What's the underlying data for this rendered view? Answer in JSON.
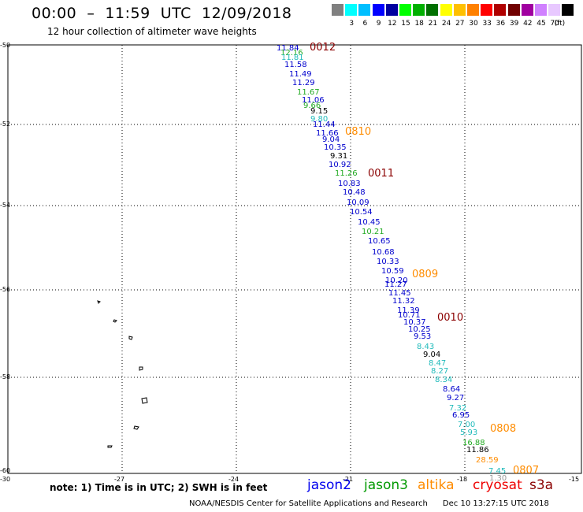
{
  "header": {
    "title": "00:00  –  11:59  UTC  12/09/2018",
    "subtitle": "12 hour collection of altimeter wave heights"
  },
  "scale": {
    "unit_label": "(ft)",
    "bins": [
      {
        "label": "",
        "color": "#808080"
      },
      {
        "label": "3",
        "color": "#00ffff"
      },
      {
        "label": "6",
        "color": "#00bfff"
      },
      {
        "label": "9",
        "color": "#0000ff"
      },
      {
        "label": "12",
        "color": "#0000a0"
      },
      {
        "label": "15",
        "color": "#00ff00"
      },
      {
        "label": "18",
        "color": "#00b000"
      },
      {
        "label": "21",
        "color": "#007000"
      },
      {
        "label": "24",
        "color": "#ffff00"
      },
      {
        "label": "27",
        "color": "#ffc000"
      },
      {
        "label": "30",
        "color": "#ff8000"
      },
      {
        "label": "33",
        "color": "#ff0000"
      },
      {
        "label": "36",
        "color": "#b00000"
      },
      {
        "label": "39",
        "color": "#700000"
      },
      {
        "label": "42",
        "color": "#a000a0"
      },
      {
        "label": "45",
        "color": "#d080ff"
      },
      {
        "label": "70",
        "color": "#e8c8ff"
      },
      {
        "label": "",
        "color": "#000000"
      }
    ]
  },
  "map": {
    "lat_ticks": [
      "-50",
      "-52",
      "-54",
      "-56",
      "-58",
      "-60"
    ],
    "lon_ticks": [
      "-30",
      "-27",
      "-24",
      "-21",
      "-18",
      "-15"
    ]
  },
  "track_passes": [
    {
      "label": "0012",
      "color": "#8b0000"
    },
    {
      "label": "0810",
      "color": "#ff8c00"
    },
    {
      "label": "0011",
      "color": "#8b0000"
    },
    {
      "label": "0809",
      "color": "#ff8c00"
    },
    {
      "label": "0010",
      "color": "#8b0000"
    },
    {
      "label": "0808",
      "color": "#ff8c00"
    },
    {
      "label": "0807",
      "color": "#ff8c00"
    }
  ],
  "observations": [
    {
      "value": "11.84",
      "color": "#0000cd"
    },
    {
      "value": "12.16",
      "color": "#22aa22"
    },
    {
      "value": "11.81",
      "color": "#22bbbb"
    },
    {
      "value": "11.58",
      "color": "#0000cd"
    },
    {
      "value": "11.49",
      "color": "#0000cd"
    },
    {
      "value": "11.29",
      "color": "#0000cd"
    },
    {
      "value": "11.67",
      "color": "#22aa22"
    },
    {
      "value": "11.06",
      "color": "#0000cd"
    },
    {
      "value": "9.66",
      "color": "#22aa22"
    },
    {
      "value": "9.15",
      "color": "#000000"
    },
    {
      "value": "9.80",
      "color": "#22bbbb"
    },
    {
      "value": "11.44",
      "color": "#0000cd"
    },
    {
      "value": "11.66",
      "color": "#0000cd"
    },
    {
      "value": "9.04",
      "color": "#0000cd"
    },
    {
      "value": "10.35",
      "color": "#0000cd"
    },
    {
      "value": "9.31",
      "color": "#000000"
    },
    {
      "value": "10.92",
      "color": "#0000cd"
    },
    {
      "value": "11.26",
      "color": "#22aa22"
    },
    {
      "value": "10.83",
      "color": "#0000cd"
    },
    {
      "value": "10.48",
      "color": "#0000cd"
    },
    {
      "value": "10.09",
      "color": "#0000cd"
    },
    {
      "value": "10.54",
      "color": "#0000cd"
    },
    {
      "value": "10.45",
      "color": "#0000cd"
    },
    {
      "value": "10.21",
      "color": "#22aa22"
    },
    {
      "value": "10.65",
      "color": "#0000cd"
    },
    {
      "value": "10.68",
      "color": "#0000cd"
    },
    {
      "value": "10.33",
      "color": "#0000cd"
    },
    {
      "value": "10.59",
      "color": "#0000cd"
    },
    {
      "value": "10.20",
      "color": "#0000cd"
    },
    {
      "value": "11.27",
      "color": "#0000cd"
    },
    {
      "value": "11.45",
      "color": "#0000cd"
    },
    {
      "value": "11.32",
      "color": "#0000cd"
    },
    {
      "value": "11.39",
      "color": "#0000cd"
    },
    {
      "value": "10.71",
      "color": "#0000cd"
    },
    {
      "value": "10.37",
      "color": "#0000cd"
    },
    {
      "value": "10.25",
      "color": "#0000cd"
    },
    {
      "value": "9.53",
      "color": "#0000cd"
    },
    {
      "value": "8.43",
      "color": "#22bbbb"
    },
    {
      "value": "9.04",
      "color": "#000000"
    },
    {
      "value": "8.47",
      "color": "#22bbbb"
    },
    {
      "value": "8.27",
      "color": "#22bbbb"
    },
    {
      "value": "8.34",
      "color": "#22bbbb"
    },
    {
      "value": "8.64",
      "color": "#0000cd"
    },
    {
      "value": "9.27",
      "color": "#0000cd"
    },
    {
      "value": "7.32",
      "color": "#22bbbb"
    },
    {
      "value": "6.95",
      "color": "#0000cd"
    },
    {
      "value": "7.00",
      "color": "#22bbbb"
    },
    {
      "value": "5.93",
      "color": "#22bbbb"
    },
    {
      "value": "16.88",
      "color": "#22aa22"
    },
    {
      "value": "11.86",
      "color": "#000000"
    },
    {
      "value": "28.59",
      "color": "#ff8c00"
    },
    {
      "value": "7.45",
      "color": "#22bbbb"
    },
    {
      "value": "1.30",
      "color": "#999999"
    }
  ],
  "note": "note:  1) Time is in UTC;  2) SWH is in feet",
  "legend": [
    {
      "label": "jason2",
      "color": "#0000ee"
    },
    {
      "label": "jason3",
      "color": "#009900"
    },
    {
      "label": "altika",
      "color": "#ff8c00"
    },
    {
      "label": "cryosat",
      "color": "#ee0000"
    },
    {
      "label": "s3a",
      "color": "#8b0000"
    }
  ],
  "footer": "NOAA/NESDIS Center for Satellite Applications and Research      Dec 10 13:27:15 UTC 2018"
}
